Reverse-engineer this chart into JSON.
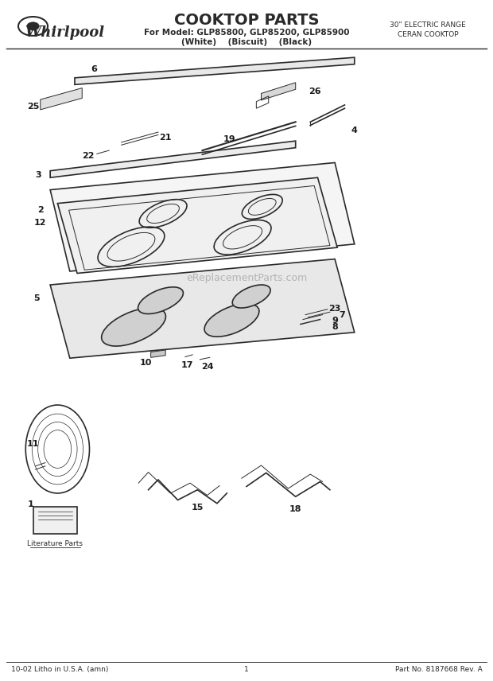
{
  "title": "COOKTOP PARTS",
  "subtitle1": "For Model: GLP85800, GLP85200, GLP85900",
  "subtitle2": "(White)    (Biscuit)    (Black)",
  "top_right_line1": "30\" ELECTRIC RANGE",
  "top_right_line2": "CERAN COOKTOP",
  "whirlpool_text": "Whirlpool",
  "footer_left": "10-02 Litho in U.S.A. (amn)",
  "footer_center": "1",
  "footer_right": "Part No. 8187668 Rev. A",
  "watermark": "eReplacementParts.com",
  "literature_parts": "Literature Parts",
  "bg_color": "#ffffff",
  "line_color": "#2a2a2a",
  "label_color": "#1a1a1a"
}
